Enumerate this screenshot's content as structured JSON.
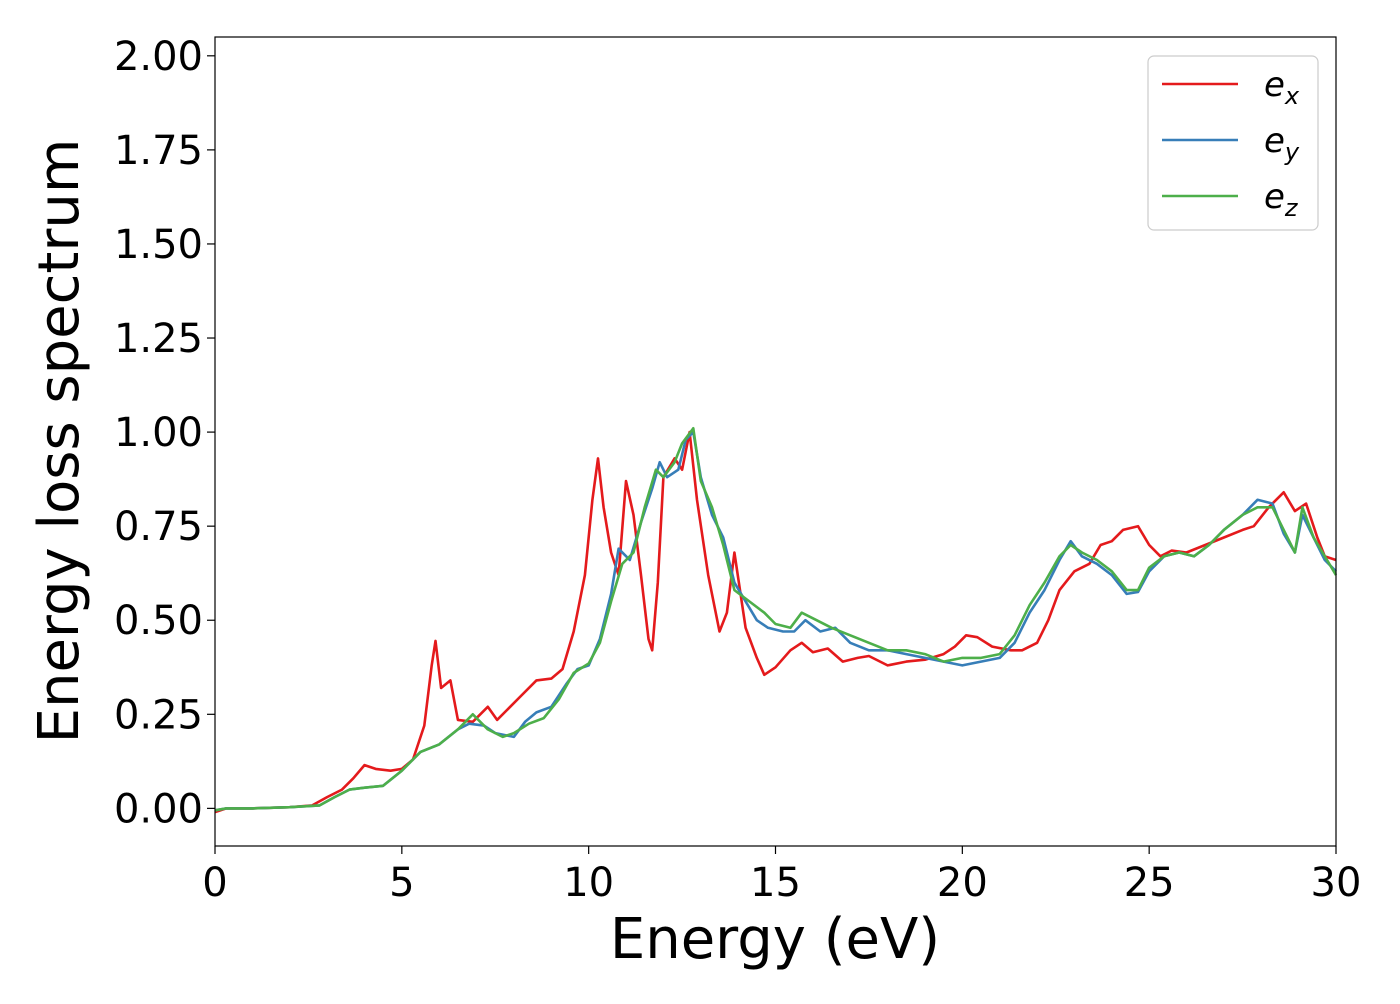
{
  "chart_data": {
    "type": "line",
    "xlabel": "Energy (eV)",
    "ylabel": "Energy loss spectrum",
    "xlim": [
      0,
      30
    ],
    "ylim": [
      -0.1,
      2.05
    ],
    "grid": false,
    "legend_position": "top-right",
    "x_ticks": [
      0,
      5,
      10,
      15,
      20,
      25,
      30
    ],
    "x_tick_labels": [
      "0",
      "5",
      "10",
      "15",
      "20",
      "25",
      "30"
    ],
    "y_ticks": [
      0,
      0.25,
      0.5,
      0.75,
      1.0,
      1.25,
      1.5,
      1.75,
      2.0
    ],
    "y_tick_labels": [
      "0.00",
      "0.25",
      "0.50",
      "0.75",
      "1.00",
      "1.25",
      "1.50",
      "1.75",
      "2.00"
    ],
    "series": [
      {
        "name": "e_x",
        "legend_base": "e",
        "legend_sub": "x",
        "color": "#e41a1c",
        "points": [
          [
            0,
            -0.01
          ],
          [
            0.3,
            0.0
          ],
          [
            1.0,
            0.0
          ],
          [
            2.0,
            0.003
          ],
          [
            2.6,
            0.008
          ],
          [
            3.0,
            0.03
          ],
          [
            3.4,
            0.05
          ],
          [
            3.7,
            0.08
          ],
          [
            4.0,
            0.115
          ],
          [
            4.3,
            0.105
          ],
          [
            4.7,
            0.1
          ],
          [
            5.0,
            0.105
          ],
          [
            5.3,
            0.13
          ],
          [
            5.6,
            0.22
          ],
          [
            5.8,
            0.38
          ],
          [
            5.9,
            0.445
          ],
          [
            6.05,
            0.32
          ],
          [
            6.3,
            0.34
          ],
          [
            6.5,
            0.235
          ],
          [
            6.9,
            0.23
          ],
          [
            7.3,
            0.27
          ],
          [
            7.55,
            0.235
          ],
          [
            7.8,
            0.26
          ],
          [
            8.2,
            0.3
          ],
          [
            8.6,
            0.34
          ],
          [
            9.0,
            0.345
          ],
          [
            9.3,
            0.37
          ],
          [
            9.6,
            0.47
          ],
          [
            9.9,
            0.62
          ],
          [
            10.1,
            0.82
          ],
          [
            10.25,
            0.93
          ],
          [
            10.4,
            0.8
          ],
          [
            10.6,
            0.68
          ],
          [
            10.8,
            0.62
          ],
          [
            11.0,
            0.87
          ],
          [
            11.2,
            0.78
          ],
          [
            11.4,
            0.62
          ],
          [
            11.6,
            0.45
          ],
          [
            11.7,
            0.42
          ],
          [
            11.85,
            0.6
          ],
          [
            12.0,
            0.88
          ],
          [
            12.3,
            0.93
          ],
          [
            12.5,
            0.9
          ],
          [
            12.7,
            1.0
          ],
          [
            12.9,
            0.82
          ],
          [
            13.2,
            0.62
          ],
          [
            13.5,
            0.47
          ],
          [
            13.7,
            0.52
          ],
          [
            13.9,
            0.68
          ],
          [
            14.2,
            0.48
          ],
          [
            14.5,
            0.4
          ],
          [
            14.7,
            0.355
          ],
          [
            15.0,
            0.375
          ],
          [
            15.4,
            0.42
          ],
          [
            15.7,
            0.44
          ],
          [
            16.0,
            0.415
          ],
          [
            16.4,
            0.425
          ],
          [
            16.8,
            0.39
          ],
          [
            17.2,
            0.4
          ],
          [
            17.5,
            0.405
          ],
          [
            18.0,
            0.38
          ],
          [
            18.5,
            0.39
          ],
          [
            19.0,
            0.395
          ],
          [
            19.5,
            0.41
          ],
          [
            19.8,
            0.43
          ],
          [
            20.1,
            0.46
          ],
          [
            20.4,
            0.455
          ],
          [
            20.8,
            0.43
          ],
          [
            21.3,
            0.42
          ],
          [
            21.6,
            0.42
          ],
          [
            22.0,
            0.44
          ],
          [
            22.3,
            0.5
          ],
          [
            22.6,
            0.58
          ],
          [
            23.0,
            0.63
          ],
          [
            23.4,
            0.65
          ],
          [
            23.7,
            0.7
          ],
          [
            24.0,
            0.71
          ],
          [
            24.3,
            0.74
          ],
          [
            24.7,
            0.75
          ],
          [
            25.0,
            0.7
          ],
          [
            25.3,
            0.67
          ],
          [
            25.6,
            0.685
          ],
          [
            26.0,
            0.68
          ],
          [
            26.5,
            0.7
          ],
          [
            27.0,
            0.72
          ],
          [
            27.5,
            0.74
          ],
          [
            27.8,
            0.75
          ],
          [
            28.2,
            0.8
          ],
          [
            28.6,
            0.84
          ],
          [
            28.9,
            0.79
          ],
          [
            29.2,
            0.81
          ],
          [
            29.5,
            0.72
          ],
          [
            29.7,
            0.67
          ],
          [
            30.0,
            0.66
          ]
        ]
      },
      {
        "name": "e_y",
        "legend_base": "e",
        "legend_sub": "y",
        "color": "#377eb8",
        "points": [
          [
            0,
            -0.005
          ],
          [
            0.3,
            0.0
          ],
          [
            1.0,
            0.0
          ],
          [
            2.0,
            0.003
          ],
          [
            2.8,
            0.008
          ],
          [
            3.2,
            0.03
          ],
          [
            3.6,
            0.05
          ],
          [
            4.0,
            0.055
          ],
          [
            4.5,
            0.06
          ],
          [
            5.0,
            0.1
          ],
          [
            5.5,
            0.15
          ],
          [
            6.0,
            0.17
          ],
          [
            6.5,
            0.21
          ],
          [
            6.8,
            0.225
          ],
          [
            7.2,
            0.22
          ],
          [
            7.5,
            0.2
          ],
          [
            8.0,
            0.19
          ],
          [
            8.3,
            0.23
          ],
          [
            8.6,
            0.255
          ],
          [
            9.0,
            0.27
          ],
          [
            9.4,
            0.33
          ],
          [
            9.7,
            0.37
          ],
          [
            10.0,
            0.38
          ],
          [
            10.3,
            0.45
          ],
          [
            10.6,
            0.57
          ],
          [
            10.8,
            0.69
          ],
          [
            11.1,
            0.66
          ],
          [
            11.4,
            0.76
          ],
          [
            11.7,
            0.85
          ],
          [
            11.9,
            0.92
          ],
          [
            12.1,
            0.88
          ],
          [
            12.4,
            0.9
          ],
          [
            12.6,
            0.98
          ],
          [
            12.8,
            1.0
          ],
          [
            13.0,
            0.88
          ],
          [
            13.3,
            0.78
          ],
          [
            13.6,
            0.72
          ],
          [
            13.9,
            0.6
          ],
          [
            14.2,
            0.55
          ],
          [
            14.5,
            0.5
          ],
          [
            14.8,
            0.48
          ],
          [
            15.2,
            0.47
          ],
          [
            15.5,
            0.47
          ],
          [
            15.8,
            0.5
          ],
          [
            16.2,
            0.47
          ],
          [
            16.6,
            0.48
          ],
          [
            17.0,
            0.44
          ],
          [
            17.5,
            0.42
          ],
          [
            18.0,
            0.42
          ],
          [
            18.5,
            0.41
          ],
          [
            19.0,
            0.4
          ],
          [
            19.5,
            0.39
          ],
          [
            20.0,
            0.38
          ],
          [
            20.5,
            0.39
          ],
          [
            21.0,
            0.4
          ],
          [
            21.4,
            0.44
          ],
          [
            21.8,
            0.52
          ],
          [
            22.2,
            0.58
          ],
          [
            22.6,
            0.66
          ],
          [
            22.9,
            0.71
          ],
          [
            23.2,
            0.67
          ],
          [
            23.6,
            0.65
          ],
          [
            24.0,
            0.62
          ],
          [
            24.4,
            0.57
          ],
          [
            24.7,
            0.575
          ],
          [
            25.0,
            0.63
          ],
          [
            25.4,
            0.67
          ],
          [
            25.8,
            0.68
          ],
          [
            26.2,
            0.67
          ],
          [
            26.6,
            0.7
          ],
          [
            27.0,
            0.74
          ],
          [
            27.5,
            0.78
          ],
          [
            27.9,
            0.82
          ],
          [
            28.3,
            0.81
          ],
          [
            28.6,
            0.73
          ],
          [
            28.9,
            0.68
          ],
          [
            29.1,
            0.78
          ],
          [
            29.4,
            0.72
          ],
          [
            29.7,
            0.66
          ],
          [
            30.0,
            0.63
          ]
        ]
      },
      {
        "name": "e_z",
        "legend_base": "e",
        "legend_sub": "z",
        "color": "#4daf4a",
        "points": [
          [
            0,
            -0.005
          ],
          [
            0.3,
            0.0
          ],
          [
            1.0,
            0.0
          ],
          [
            2.0,
            0.003
          ],
          [
            2.8,
            0.008
          ],
          [
            3.2,
            0.03
          ],
          [
            3.6,
            0.05
          ],
          [
            4.0,
            0.055
          ],
          [
            4.5,
            0.06
          ],
          [
            5.0,
            0.1
          ],
          [
            5.5,
            0.15
          ],
          [
            6.0,
            0.17
          ],
          [
            6.5,
            0.21
          ],
          [
            6.9,
            0.25
          ],
          [
            7.3,
            0.21
          ],
          [
            7.7,
            0.19
          ],
          [
            8.0,
            0.2
          ],
          [
            8.4,
            0.225
          ],
          [
            8.8,
            0.24
          ],
          [
            9.2,
            0.29
          ],
          [
            9.6,
            0.36
          ],
          [
            10.0,
            0.385
          ],
          [
            10.3,
            0.44
          ],
          [
            10.6,
            0.55
          ],
          [
            10.9,
            0.65
          ],
          [
            11.2,
            0.68
          ],
          [
            11.5,
            0.8
          ],
          [
            11.8,
            0.9
          ],
          [
            12.0,
            0.88
          ],
          [
            12.3,
            0.92
          ],
          [
            12.5,
            0.97
          ],
          [
            12.8,
            1.01
          ],
          [
            13.0,
            0.87
          ],
          [
            13.3,
            0.8
          ],
          [
            13.6,
            0.7
          ],
          [
            13.9,
            0.58
          ],
          [
            14.3,
            0.55
          ],
          [
            14.7,
            0.52
          ],
          [
            15.0,
            0.49
          ],
          [
            15.4,
            0.48
          ],
          [
            15.7,
            0.52
          ],
          [
            16.1,
            0.5
          ],
          [
            16.5,
            0.48
          ],
          [
            17.0,
            0.46
          ],
          [
            17.5,
            0.44
          ],
          [
            18.0,
            0.42
          ],
          [
            18.5,
            0.42
          ],
          [
            19.0,
            0.41
          ],
          [
            19.5,
            0.39
          ],
          [
            20.0,
            0.4
          ],
          [
            20.5,
            0.4
          ],
          [
            21.0,
            0.41
          ],
          [
            21.4,
            0.46
          ],
          [
            21.8,
            0.54
          ],
          [
            22.2,
            0.6
          ],
          [
            22.6,
            0.67
          ],
          [
            22.9,
            0.7
          ],
          [
            23.2,
            0.68
          ],
          [
            23.6,
            0.66
          ],
          [
            24.0,
            0.63
          ],
          [
            24.4,
            0.58
          ],
          [
            24.7,
            0.58
          ],
          [
            25.0,
            0.64
          ],
          [
            25.4,
            0.67
          ],
          [
            25.8,
            0.68
          ],
          [
            26.2,
            0.67
          ],
          [
            26.6,
            0.7
          ],
          [
            27.0,
            0.74
          ],
          [
            27.5,
            0.78
          ],
          [
            27.9,
            0.8
          ],
          [
            28.3,
            0.8
          ],
          [
            28.6,
            0.74
          ],
          [
            28.9,
            0.68
          ],
          [
            29.1,
            0.8
          ],
          [
            29.4,
            0.72
          ],
          [
            29.7,
            0.67
          ],
          [
            30.0,
            0.62
          ]
        ]
      }
    ]
  }
}
